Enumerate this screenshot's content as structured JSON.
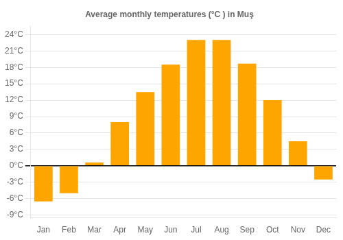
{
  "chart_data": {
    "type": "bar",
    "title": "Average monthly temperatures (°C ) in Muş",
    "categories": [
      "Jan",
      "Feb",
      "Mar",
      "Apr",
      "May",
      "Jun",
      "Jul",
      "Aug",
      "Sep",
      "Oct",
      "Nov",
      "Dec"
    ],
    "values": [
      -6.5,
      -5.0,
      0.6,
      8.0,
      13.5,
      18.5,
      23.0,
      23.0,
      18.7,
      12.0,
      4.5,
      -2.5
    ],
    "color": "#FFA500",
    "ylim": [
      -9.5,
      25.5
    ],
    "yticks": [
      {
        "value": -9,
        "label": "-9°C"
      },
      {
        "value": -6,
        "label": "-6°C"
      },
      {
        "value": -3,
        "label": "-3°C"
      },
      {
        "value": 0,
        "label": "0°C"
      },
      {
        "value": 3,
        "label": "3°C"
      },
      {
        "value": 6,
        "label": "6°C"
      },
      {
        "value": 9,
        "label": "9°C"
      },
      {
        "value": 12,
        "label": "12°C"
      },
      {
        "value": 15,
        "label": "15°C"
      },
      {
        "value": 18,
        "label": "18°C"
      },
      {
        "value": 21,
        "label": "21°C"
      },
      {
        "value": 24,
        "label": "24°C"
      }
    ],
    "grid": true
  }
}
